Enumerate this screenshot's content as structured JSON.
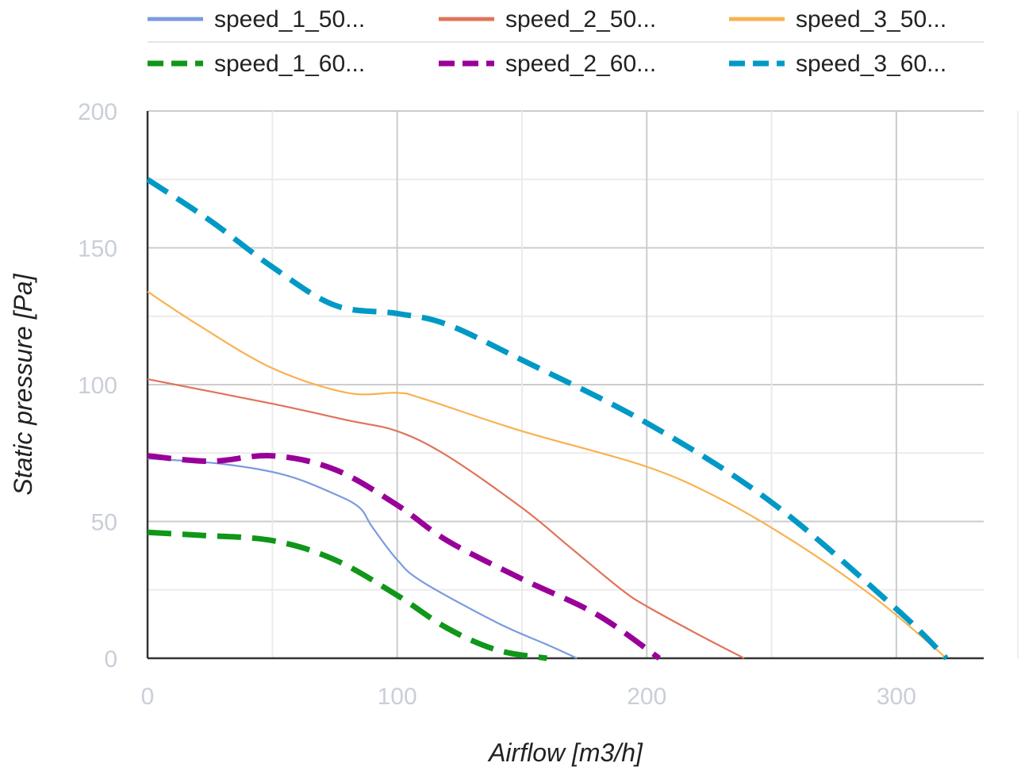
{
  "chart_data": {
    "type": "line",
    "title": "",
    "xlabel": "Airflow [m3/h]",
    "ylabel": "Static pressure [Pa]",
    "xlim": [
      0,
      335
    ],
    "ylim": [
      0,
      200
    ],
    "x_ticks": [
      0,
      100,
      200,
      300
    ],
    "y_ticks": [
      0,
      50,
      100,
      150,
      200
    ],
    "grid": true,
    "legend_position": "top",
    "series": [
      {
        "name": "speed_1_50...",
        "color": "#7b9be0",
        "style": "solid",
        "x": [
          0,
          30,
          55,
          75,
          85,
          90,
          100,
          110,
          140,
          160,
          172
        ],
        "y": [
          73,
          71,
          67,
          60,
          55,
          48,
          36,
          28,
          13,
          5,
          0
        ]
      },
      {
        "name": "speed_2_50...",
        "color": "#e0735a",
        "style": "solid",
        "x": [
          0,
          50,
          80,
          100,
          120,
          150,
          170,
          190,
          200,
          220,
          239
        ],
        "y": [
          102,
          93,
          87,
          83,
          74,
          55,
          40,
          25,
          19,
          9,
          0
        ]
      },
      {
        "name": "speed_3_50...",
        "color": "#f9b14f",
        "style": "solid",
        "x": [
          0,
          20,
          50,
          80,
          100,
          110,
          150,
          200,
          230,
          260,
          290,
          310,
          320
        ],
        "y": [
          134,
          122,
          106,
          97,
          97,
          95,
          83,
          70,
          58,
          42,
          23,
          8,
          0
        ]
      },
      {
        "name": "speed_1_60...",
        "color": "#109618",
        "style": "dashed",
        "x": [
          0,
          20,
          50,
          75,
          100,
          120,
          140,
          160
        ],
        "y": [
          46,
          45,
          43,
          36,
          23,
          11,
          3,
          0
        ]
      },
      {
        "name": "speed_2_60...",
        "color": "#990099",
        "style": "dashed",
        "x": [
          0,
          25,
          50,
          75,
          100,
          120,
          150,
          180,
          205
        ],
        "y": [
          74,
          72,
          74,
          69,
          56,
          43,
          29,
          16,
          0
        ]
      },
      {
        "name": "speed_3_60...",
        "color": "#0099c6",
        "style": "dashed",
        "x": [
          0,
          25,
          50,
          75,
          100,
          120,
          150,
          200,
          250,
          300,
          320
        ],
        "y": [
          175,
          160,
          143,
          129,
          126,
          122,
          109,
          86,
          57,
          18,
          0
        ]
      }
    ]
  }
}
